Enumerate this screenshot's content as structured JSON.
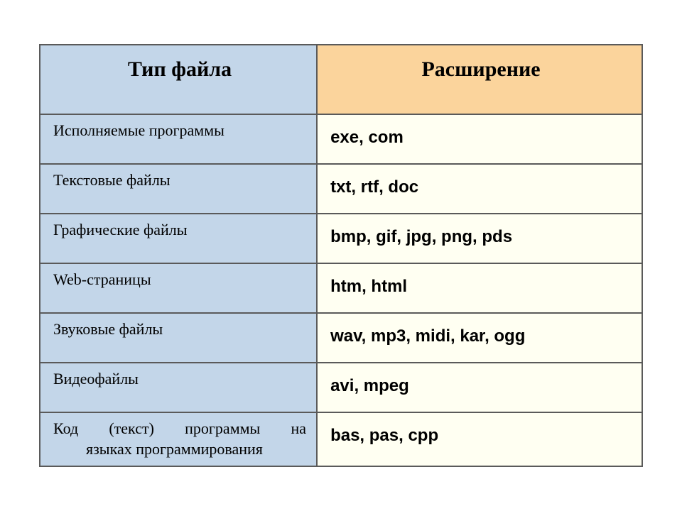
{
  "table": {
    "type": "table",
    "border_color": "#5a5a5a",
    "border_width": 2,
    "columns": [
      {
        "label": "Тип файла",
        "width_pct": 46,
        "align": "center",
        "header_bg": "#c3d6e9",
        "cell_bg": "#c3d6e9",
        "font_family": "Times New Roman",
        "header_fontsize": 30,
        "cell_fontsize": 22,
        "cell_weight": "normal"
      },
      {
        "label": "Расширение",
        "width_pct": 54,
        "align": "left",
        "header_bg": "#fbd49c",
        "cell_bg": "#fffff2",
        "font_family": "Arial",
        "header_fontsize": 30,
        "cell_fontsize": 24,
        "cell_weight": "bold"
      }
    ],
    "rows": [
      {
        "type": "Исполняемые программы",
        "ext": "exe, com"
      },
      {
        "type": "Текстовые файлы",
        "ext": "txt, rtf, doc"
      },
      {
        "type": "Графические файлы",
        "ext": "bmp, gif, jpg, png, pds"
      },
      {
        "type": "Web-страницы",
        "ext": "htm, html"
      },
      {
        "type": "Звуковые файлы",
        "ext": "wav, mp3, midi, kar, ogg"
      },
      {
        "type": "Видеофайлы",
        "ext": "avi, mpeg"
      },
      {
        "type_line1": "Код (текст) программы на",
        "type_line2": "языках программирования",
        "ext": "bas, pas, cpp"
      }
    ]
  }
}
